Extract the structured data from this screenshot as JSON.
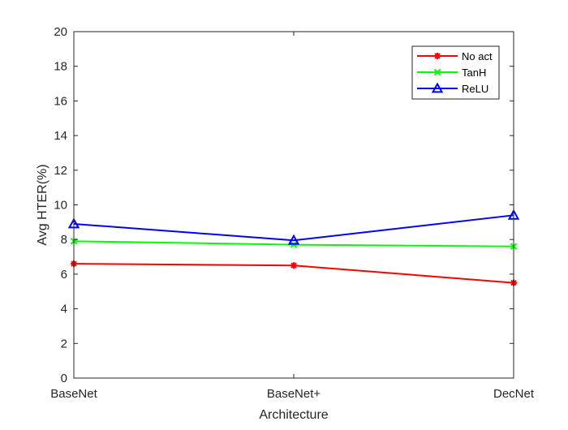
{
  "chart_data": {
    "type": "line",
    "title": "",
    "xlabel": "Architecture",
    "ylabel": "Avg HTER(%)",
    "categories": [
      "BaseNet",
      "BaseNet+",
      "DecNet"
    ],
    "ylim": [
      0,
      20
    ],
    "yticks": [
      "0",
      "2",
      "4",
      "6",
      "8",
      "10",
      "12",
      "14",
      "16",
      "18",
      "20"
    ],
    "grid": false,
    "legend_position": "top-right",
    "series": [
      {
        "name": "No act",
        "color": "#ff0000",
        "marker": "asterisk",
        "values": [
          6.6,
          6.5,
          5.5
        ]
      },
      {
        "name": "TanH",
        "color": "#00ff00",
        "marker": "x",
        "values": [
          7.9,
          7.7,
          7.6
        ]
      },
      {
        "name": "ReLU",
        "color": "#0000ff",
        "marker": "triangle",
        "values": [
          8.9,
          7.95,
          9.4
        ]
      }
    ]
  }
}
